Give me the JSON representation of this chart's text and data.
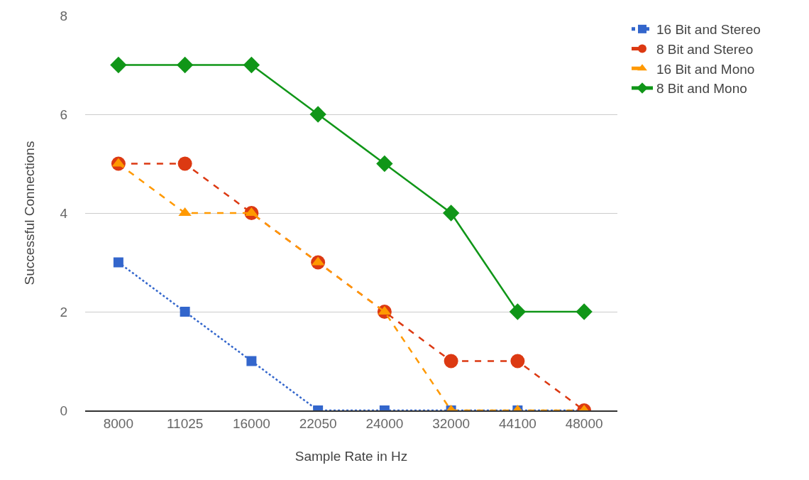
{
  "chart_data": {
    "type": "line",
    "xlabel": "Sample Rate in Hz",
    "ylabel": "Successful Connections",
    "categories": [
      "8000",
      "11025",
      "16000",
      "22050",
      "24000",
      "32000",
      "44100",
      "48000"
    ],
    "series": [
      {
        "name": "16 Bit and Stereo",
        "color": "#3366cc",
        "marker": "square",
        "line_style": "dotted",
        "values": [
          3,
          2,
          1,
          0,
          0,
          0,
          0,
          0
        ]
      },
      {
        "name": "8 Bit and Stereo",
        "color": "#dc3912",
        "marker": "circle",
        "line_style": "dashed",
        "values": [
          5,
          5,
          4,
          3,
          2,
          1,
          1,
          0
        ]
      },
      {
        "name": "16 Bit and Mono",
        "color": "#ff9900",
        "marker": "triangle",
        "line_style": "dashed",
        "values": [
          5,
          4,
          4,
          3,
          2,
          0,
          0,
          0
        ]
      },
      {
        "name": "8 Bit and Mono",
        "color": "#109618",
        "marker": "diamond",
        "line_style": "solid",
        "values": [
          7,
          7,
          7,
          6,
          5,
          4,
          2,
          2
        ]
      }
    ],
    "ylim": [
      0,
      8
    ],
    "yticks": [
      0,
      2,
      4,
      6,
      8
    ],
    "grid": "y",
    "legend": "top right"
  }
}
